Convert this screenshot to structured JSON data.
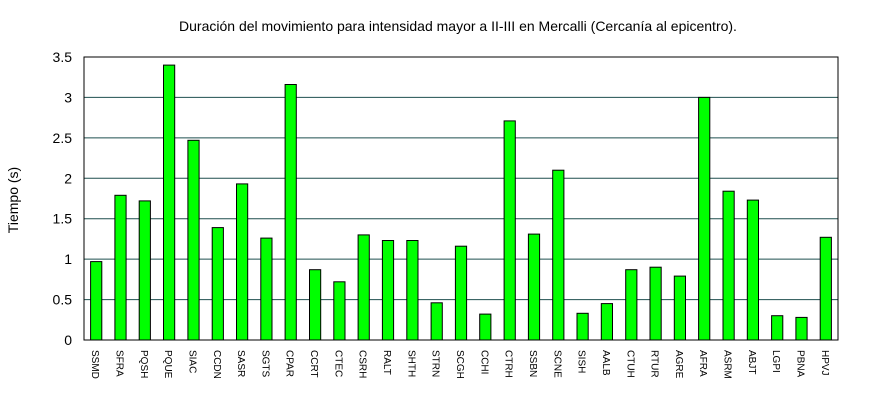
{
  "chart_data": {
    "type": "bar",
    "title": "Duración del movimiento para intensidad mayor a II-III en Mercalli (Cercanía al epicentro).",
    "xlabel": "",
    "ylabel": "Tiempo (s)",
    "ylim": [
      0,
      3.5
    ],
    "yticks": [
      "0",
      "0.5",
      "1",
      "1.5",
      "2",
      "2.5",
      "3",
      "3.5"
    ],
    "grid": true,
    "legend": "none",
    "bar_color": "#00ff00",
    "grid_color": "#1f4f4f",
    "categories": [
      "SSMD",
      "SFRA",
      "PQSH",
      "PQUE",
      "SIAC",
      "CCDN",
      "SASR",
      "SGTS",
      "CPAR",
      "CCRT",
      "CTEC",
      "CSRH",
      "RALT",
      "SHTH",
      "STRN",
      "SCGH",
      "CCHI",
      "CTRH",
      "SSBN",
      "SCNE",
      "SISH",
      "AALB",
      "CTUH",
      "RTUR",
      "AGRE",
      "AFRA",
      "ASRM",
      "ABJT",
      "LGPI",
      "PBNA",
      "HPVJ"
    ],
    "values": [
      0.97,
      1.79,
      1.72,
      3.4,
      2.47,
      1.39,
      1.93,
      1.26,
      3.16,
      0.87,
      0.72,
      1.3,
      1.23,
      1.23,
      0.46,
      1.16,
      0.32,
      2.71,
      1.31,
      2.1,
      0.33,
      0.45,
      0.87,
      0.9,
      0.79,
      3.0,
      1.84,
      1.73,
      0.3,
      0.28,
      1.27
    ]
  }
}
